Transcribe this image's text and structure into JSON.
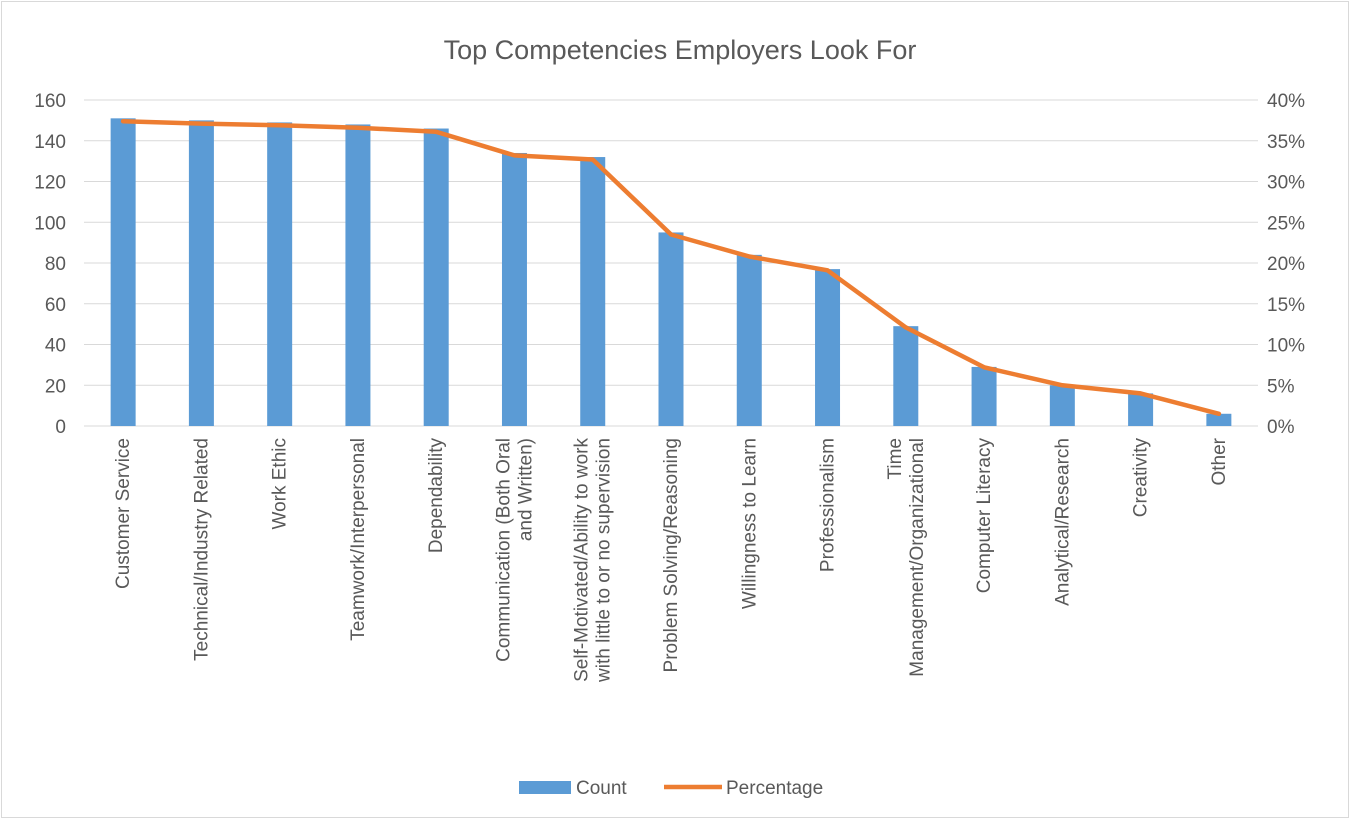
{
  "chart_data": {
    "type": "bar",
    "title": "Top Competencies Employers Look For",
    "categories": [
      "Customer Service",
      "Technical/Industry Related",
      "Work Ethic",
      "Teamwork/Interpersonal",
      "Dependability",
      "Communication (Both Oral and Written)",
      "Self-Motivated/Ability to work with little to or no supervision",
      "Problem Solving/Reasoning",
      "Willingness to Learn",
      "Professionalism",
      "Time Management/Organizational",
      "Computer Literacy",
      "Analytical/Research",
      "Creativity",
      "Other"
    ],
    "category_label_lines": [
      [
        "Customer Service"
      ],
      [
        "Technical/Industry Related"
      ],
      [
        "Work Ethic"
      ],
      [
        "Teamwork/Interpersonal"
      ],
      [
        "Dependability"
      ],
      [
        "Communication (Both Oral",
        "and Written)"
      ],
      [
        "Self-Motivated/Ability to work",
        "with little to or no supervision"
      ],
      [
        "Problem Solving/Reasoning"
      ],
      [
        "Willingness to Learn"
      ],
      [
        "Professionalism"
      ],
      [
        "Time",
        "Management/Organizational"
      ],
      [
        "Computer Literacy"
      ],
      [
        "Analytical/Research"
      ],
      [
        "Creativity"
      ],
      [
        "Other"
      ]
    ],
    "series": [
      {
        "name": "Count",
        "type": "bar",
        "axis": "left",
        "color": "#5b9bd5",
        "values": [
          151,
          150,
          149,
          148,
          146,
          134,
          132,
          95,
          84,
          77,
          49,
          29,
          20,
          16,
          6
        ]
      },
      {
        "name": "Percentage",
        "type": "line",
        "axis": "right",
        "color": "#ed7d31",
        "values": [
          37.4,
          37.1,
          36.9,
          36.6,
          36.1,
          33.2,
          32.7,
          23.5,
          20.8,
          19.1,
          12.1,
          7.2,
          5.0,
          4.0,
          1.5
        ]
      }
    ],
    "y_left": {
      "min": 0,
      "max": 160,
      "step": 20,
      "ticks": [
        "0",
        "20",
        "40",
        "60",
        "80",
        "100",
        "120",
        "140",
        "160"
      ]
    },
    "y_right": {
      "min": 0,
      "max": 40,
      "step": 5,
      "ticks": [
        "0%",
        "5%",
        "10%",
        "15%",
        "20%",
        "25%",
        "30%",
        "35%",
        "40%"
      ]
    },
    "grid": true,
    "legend_position": "bottom",
    "gridline_color": "#d9d9d9"
  }
}
